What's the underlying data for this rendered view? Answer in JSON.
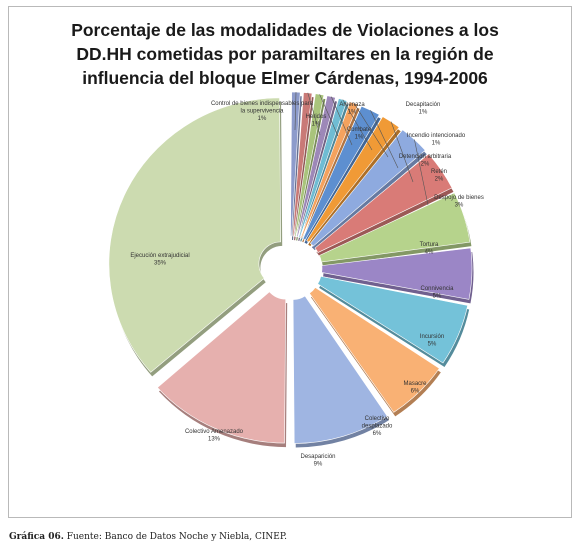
{
  "chart_data": {
    "type": "pie",
    "title": "Porcentaje de las modalidades de Violaciones a los DD.HH cometidas por paramiltares en la región de influencia del bloque Elmer Cárdenas, 1994-2006",
    "title_lines": [
      "Porcentaje de las modalidades de Violaciones a los",
      "DD.HH cometidas por paramiltares en la región de",
      "influencia del bloque Elmer Cárdenas, 1994-2006"
    ],
    "style": "3d-exploded",
    "slices": [
      {
        "label_lines": [
          "Control de bienes indispensables para",
          "la supervivencia"
        ],
        "pct_text": "1%",
        "value": 1,
        "color": "#8d9bcb"
      },
      {
        "label_lines": [
          "Heridos"
        ],
        "pct_text": "1%",
        "value": 1,
        "color": "#c97a77"
      },
      {
        "label_lines": [
          "Amenaza"
        ],
        "pct_text": "1%",
        "value": 1,
        "color": "#a9c47c"
      },
      {
        "label_lines": [
          "Combate"
        ],
        "pct_text": "1%",
        "value": 1,
        "color": "#9d88b8"
      },
      {
        "label_lines": [
          "Decapitación"
        ],
        "pct_text": "1%",
        "value": 1,
        "color": "#6fbcd3"
      },
      {
        "label_lines": [
          "Incendio intencionado"
        ],
        "pct_text": "1%",
        "value": 1,
        "color": "#f4a25e"
      },
      {
        "label_lines": [
          "Detención arbitraria"
        ],
        "pct_text": "2%",
        "value": 2,
        "color": "#5d8fd0"
      },
      {
        "label_lines": [
          "Retén"
        ],
        "pct_text": "2%",
        "value": 2,
        "color": "#f09a36"
      },
      {
        "label_lines": [
          "Despojo de bienes"
        ],
        "pct_text": "3%",
        "value": 3,
        "color": "#8eaadf"
      },
      {
        "label_lines": [
          "Tortura"
        ],
        "pct_text": "4%",
        "value": 4,
        "color": "#d97b77"
      },
      {
        "label_lines": [
          "Connivencia"
        ],
        "pct_text": "5%",
        "value": 5,
        "color": "#b6d38c"
      },
      {
        "label_lines": [
          "Incursión"
        ],
        "pct_text": "5%",
        "value": 5,
        "color": "#9b86c6"
      },
      {
        "label_lines": [
          "Masacre"
        ],
        "pct_text": "6%",
        "value": 6,
        "color": "#74c2d9"
      },
      {
        "label_lines": [
          "Colectivo",
          "desplazado"
        ],
        "pct_text": "6%",
        "value": 6,
        "color": "#f9b174"
      },
      {
        "label_lines": [
          "Desaparición"
        ],
        "pct_text": "9%",
        "value": 9,
        "color": "#9fb5e2"
      },
      {
        "label_lines": [
          "Colectivo Amenazado"
        ],
        "pct_text": "13%",
        "value": 13,
        "color": "#e6b0ae"
      },
      {
        "label_lines": [
          "Ejecución extrajudicial"
        ],
        "pct_text": "35%",
        "value": 35,
        "color": "#ccdbb0"
      }
    ]
  },
  "caption": {
    "label": "Gráfica 06.",
    "text": " Fuente: Banco de Datos Noche y Niebla, CINEP."
  }
}
